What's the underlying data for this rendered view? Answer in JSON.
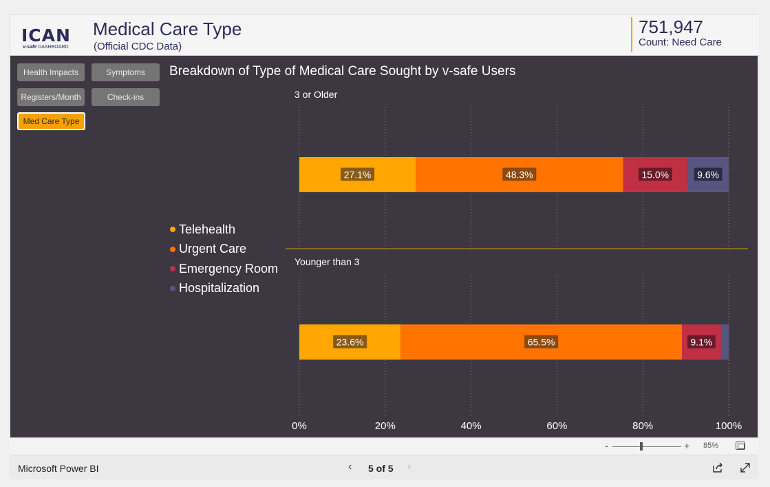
{
  "header": {
    "logo_text": "ICAN",
    "logo_sub_italic": "v-safe",
    "logo_sub": "DASHBOARD",
    "title": "Medical Care Type",
    "subtitle": "(Official CDC Data)",
    "kpi_value": "751,947",
    "kpi_label": "Count: Need Care"
  },
  "nav": {
    "health_impacts": "Health Impacts",
    "symptoms": "Symptoms",
    "registers": "Registers/Month",
    "checkins": "Check-ins",
    "med_care": "Med Care Type"
  },
  "legend": [
    {
      "label": "Telehealth",
      "color": "#ffa600"
    },
    {
      "label": "Urgent Care",
      "color": "#ff7300"
    },
    {
      "label": "Emergency Room",
      "color": "#c12f44"
    },
    {
      "label": "Hospitalization",
      "color": "#5a5480"
    }
  ],
  "chart_data": {
    "type": "bar",
    "title": "Breakdown of Type of Medical Care Sought by v-safe Users",
    "orientation": "horizontal-stacked-100",
    "categories": [
      "Telehealth",
      "Urgent Care",
      "Emergency Room",
      "Hospitalization"
    ],
    "panels": [
      {
        "name": "3 or Older",
        "values": [
          27.1,
          48.3,
          15.0,
          9.6
        ],
        "labels": [
          "27.1%",
          "48.3%",
          "15.0%",
          "9.6%"
        ]
      },
      {
        "name": "Younger than 3",
        "values": [
          23.6,
          65.5,
          9.1,
          1.8
        ],
        "labels": [
          "23.6%",
          "65.5%",
          "9.1%",
          ""
        ]
      }
    ],
    "xticks": [
      "0%",
      "20%",
      "40%",
      "60%",
      "80%",
      "100%"
    ],
    "xlim": [
      0,
      100
    ],
    "grid": true
  },
  "zoom": {
    "minus": "-",
    "plus": "+",
    "percent": "85%"
  },
  "footer": {
    "brand": "Microsoft Power BI",
    "page": "5 of 5"
  }
}
